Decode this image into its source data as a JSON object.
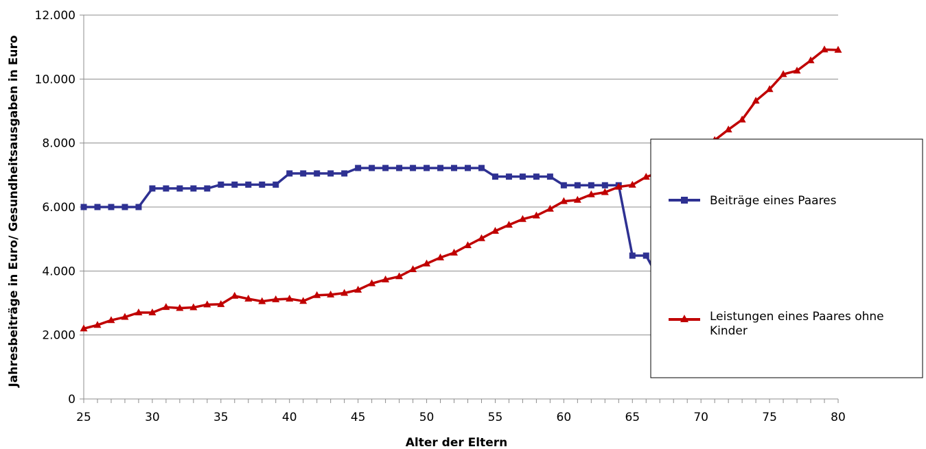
{
  "chart_data": {
    "type": "line",
    "xlabel": "Alter der Eltern",
    "ylabel": "Jahresbeiträge in Euro/ Gesundheitsausgaben in Euro",
    "xlim": [
      25,
      80
    ],
    "ylim": [
      0,
      12000
    ],
    "x_ticks": [
      "25",
      "30",
      "35",
      "40",
      "45",
      "50",
      "55",
      "60",
      "65",
      "70",
      "75",
      "80"
    ],
    "y_ticks": [
      "0",
      "2.000",
      "4.000",
      "6.000",
      "8.000",
      "10.000",
      "12.000"
    ],
    "grid": "horizontal",
    "legend_position": "right",
    "x": [
      25,
      26,
      27,
      28,
      29,
      30,
      31,
      32,
      33,
      34,
      35,
      36,
      37,
      38,
      39,
      40,
      41,
      42,
      43,
      44,
      45,
      46,
      47,
      48,
      49,
      50,
      51,
      52,
      53,
      54,
      55,
      56,
      57,
      58,
      59,
      60,
      61,
      62,
      63,
      64,
      65,
      66,
      67,
      68,
      69,
      70,
      71,
      72,
      73,
      74,
      75,
      76,
      77,
      78,
      79,
      80
    ],
    "series": [
      {
        "name": "Beiträge eines Paares",
        "color": "#2e3192",
        "marker": "square",
        "values": [
          6000,
          6000,
          6000,
          6000,
          6000,
          6580,
          6580,
          6580,
          6580,
          6580,
          6700,
          6700,
          6700,
          6700,
          6700,
          7050,
          7050,
          7050,
          7050,
          7050,
          7220,
          7220,
          7220,
          7220,
          7220,
          7220,
          7220,
          7220,
          7220,
          7220,
          6950,
          6950,
          6950,
          6950,
          6950,
          6680,
          6680,
          6680,
          6680,
          6680,
          4480,
          4480,
          3700,
          3700,
          3700,
          3700,
          3700,
          3700,
          3700,
          3700,
          3700,
          3700,
          3700,
          3700,
          3700,
          3700
        ]
      },
      {
        "name": "Leistungen eines Paares ohne Kinder",
        "color": "#c00000",
        "marker": "triangle",
        "values": [
          2200,
          2310,
          2460,
          2560,
          2700,
          2700,
          2870,
          2840,
          2860,
          2950,
          2960,
          3220,
          3130,
          3050,
          3110,
          3130,
          3060,
          3240,
          3260,
          3310,
          3410,
          3610,
          3730,
          3830,
          4050,
          4230,
          4420,
          4570,
          4800,
          5020,
          5250,
          5440,
          5620,
          5730,
          5940,
          6180,
          6220,
          6390,
          6460,
          6630,
          6690,
          6940,
          7080,
          7260,
          7500,
          7800,
          8090,
          8420,
          8730,
          9320,
          9680,
          10150,
          10260,
          10580,
          10920,
          10910
        ]
      }
    ]
  }
}
